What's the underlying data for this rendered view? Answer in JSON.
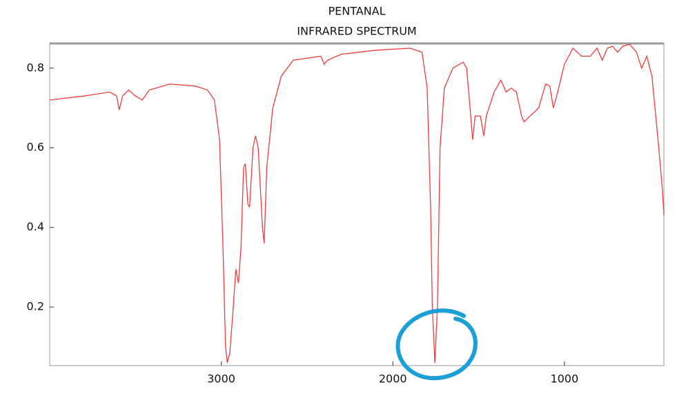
{
  "chart_data": {
    "type": "line",
    "title": "PENTANAL",
    "subtitle": "INFRARED SPECTRUM",
    "color": "#f03a3a",
    "x": [
      4000,
      3800,
      3650,
      3610,
      3595,
      3575,
      3540,
      3500,
      3460,
      3420,
      3300,
      3150,
      3080,
      3040,
      3010,
      2990,
      2975,
      2965,
      2950,
      2930,
      2915,
      2900,
      2885,
      2870,
      2860,
      2845,
      2835,
      2815,
      2800,
      2785,
      2760,
      2750,
      2735,
      2700,
      2650,
      2580,
      2420,
      2400,
      2380,
      2300,
      2100,
      1900,
      1830,
      1800,
      1780,
      1770,
      1755,
      1740,
      1725,
      1700,
      1650,
      1590,
      1570,
      1550,
      1535,
      1520,
      1490,
      1470,
      1455,
      1410,
      1370,
      1340,
      1310,
      1280,
      1250,
      1235,
      1200,
      1150,
      1110,
      1085,
      1065,
      1045,
      1000,
      950,
      900,
      850,
      810,
      780,
      750,
      720,
      690,
      660,
      620,
      580,
      550,
      520,
      490,
      450,
      430,
      420
    ],
    "values": [
      0.72,
      0.73,
      0.74,
      0.73,
      0.695,
      0.73,
      0.745,
      0.73,
      0.72,
      0.745,
      0.76,
      0.755,
      0.745,
      0.72,
      0.62,
      0.35,
      0.1,
      0.06,
      0.085,
      0.2,
      0.295,
      0.26,
      0.35,
      0.55,
      0.56,
      0.46,
      0.45,
      0.6,
      0.63,
      0.6,
      0.4,
      0.36,
      0.55,
      0.7,
      0.78,
      0.82,
      0.83,
      0.81,
      0.82,
      0.835,
      0.845,
      0.85,
      0.84,
      0.75,
      0.45,
      0.2,
      0.06,
      0.2,
      0.6,
      0.75,
      0.8,
      0.815,
      0.8,
      0.7,
      0.62,
      0.68,
      0.68,
      0.63,
      0.68,
      0.74,
      0.77,
      0.74,
      0.75,
      0.74,
      0.68,
      0.665,
      0.68,
      0.7,
      0.76,
      0.755,
      0.7,
      0.73,
      0.81,
      0.85,
      0.83,
      0.83,
      0.85,
      0.82,
      0.85,
      0.855,
      0.84,
      0.855,
      0.86,
      0.84,
      0.8,
      0.83,
      0.78,
      0.6,
      0.5,
      0.43
    ],
    "xlim": [
      4000,
      420
    ],
    "ylim": [
      0.053,
      0.862
    ],
    "xticks": [
      3000,
      2000,
      1000
    ],
    "yticks": [
      0.2,
      0.4,
      0.6,
      0.8
    ]
  }
}
